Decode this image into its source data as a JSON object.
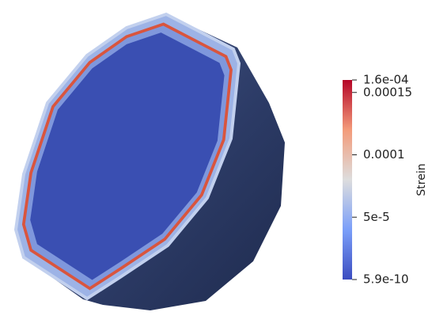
{
  "colorbar": {
    "title": "Strein",
    "max": {
      "value": 0.00016,
      "label": "1.6e-04"
    },
    "min": {
      "value": 5.9e-10,
      "label": "5.9e-10"
    },
    "ticks": [
      0.00015,
      0.0001,
      {
        "value": 5e-05,
        "label": "5e-5"
      }
    ]
  }
}
